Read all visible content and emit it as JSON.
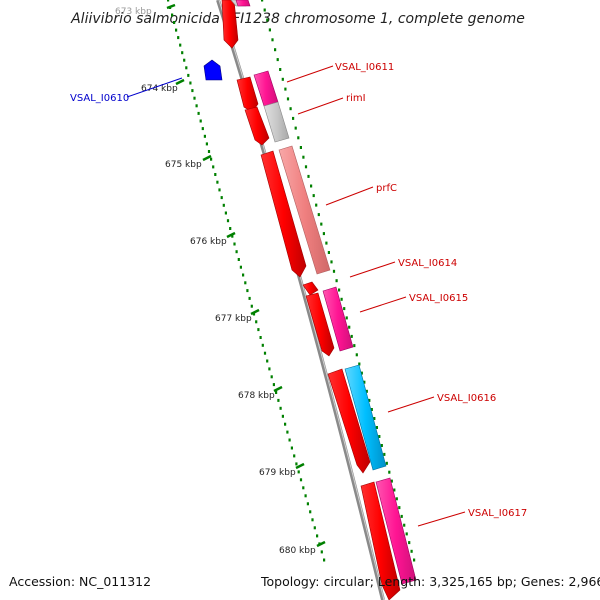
{
  "title": "Aliivibrio salmonicida LFI1238 chromosome 1, complete genome",
  "accession": "Accession: NC_011312",
  "summary": "Topology: circular; Length: 3,325,165 bp; Genes: 2,966",
  "kbp_ticks": [
    "673 kbp",
    "674 kbp",
    "675 kbp",
    "676 kbp",
    "677 kbp",
    "678 kbp",
    "679 kbp",
    "680 kbp"
  ],
  "gene_labels": [
    {
      "text": "VSAL_I0610",
      "color": "#0000cc"
    },
    {
      "text": "VSAL_I0611",
      "color": "#cc0000"
    },
    {
      "text": "rimI",
      "color": "#cc0000"
    },
    {
      "text": "prfC",
      "color": "#cc0000"
    },
    {
      "text": "VSAL_I0614",
      "color": "#cc0000"
    },
    {
      "text": "VSAL_I0615",
      "color": "#cc0000"
    },
    {
      "text": "VSAL_I0616",
      "color": "#cc0000"
    },
    {
      "text": "VSAL_I0617",
      "color": "#cc0000"
    }
  ],
  "colors": {
    "cds_red": "#ff0000",
    "gene_pink": "#ff1493",
    "gene_grey": "#c8c8c8",
    "gene_salmon": "#f08080",
    "gene_cyan": "#00bfff",
    "gene_blue": "#0000ff",
    "backbone": "#808080",
    "tick_green": "#008000"
  }
}
